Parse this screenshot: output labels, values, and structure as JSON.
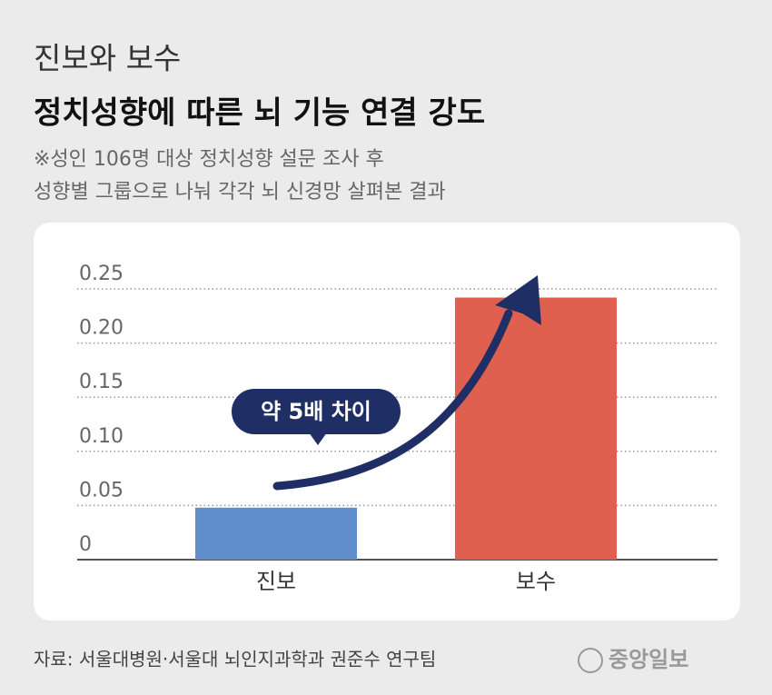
{
  "chart_data": {
    "type": "bar",
    "title": "진보와 보수",
    "subtitle": "정치성향에 따른 뇌 기능 연결 강도",
    "notes": [
      "※성인 106명 대상 정치성향 설문 조사 후",
      "성향별 그룹으로 나눠 각각 뇌 신경망 살펴본 결과"
    ],
    "categories": [
      "진보",
      "보수"
    ],
    "values": [
      0.048,
      0.242
    ],
    "colors": [
      "#5f8ccb",
      "#e0604f"
    ],
    "ylim": [
      0,
      0.25
    ],
    "yticks": [
      0,
      0.05,
      {
        "value": 0.1,
        "label": "0.10"
      },
      0.15,
      {
        "value": 0.2,
        "label": "0.20"
      },
      0.25
    ],
    "grid": true,
    "annotation": "약 5배 차이",
    "source": "자료: 서울대병원·서울대 뇌인지과학과 권준수 연구팀",
    "publisher": "중앙일보"
  }
}
